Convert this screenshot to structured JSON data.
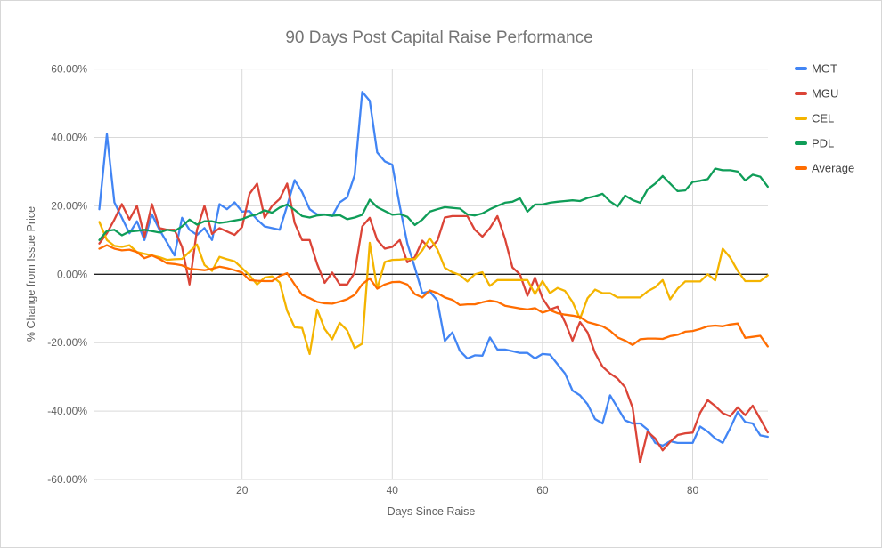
{
  "chart_data": {
    "type": "line",
    "title": "90 Days Post Capital Raise Performance",
    "xlabel": "Days Since Raise",
    "ylabel": "% Change from Issue Price",
    "xlim": [
      0,
      91
    ],
    "ylim": [
      -60,
      60
    ],
    "x_start_day": 1,
    "grid": true,
    "legend_position": "right",
    "x_ticks": [
      20,
      40,
      60,
      80
    ],
    "x_tick_labels": [
      "20",
      "40",
      "60",
      "80"
    ],
    "y_ticks": [
      60,
      40,
      20,
      0,
      -20,
      -40,
      -60
    ],
    "y_tick_labels": [
      "60.00%",
      "40.00%",
      "20.00%",
      "0.00%",
      "-20.00%",
      "-40.00%",
      "-60.00%"
    ],
    "colors": {
      "grid": "#d9d9d9",
      "zero_line": "#212121",
      "title_text": "#757575",
      "tick_text": "#616161",
      "legend_text": "#424242"
    },
    "series": [
      {
        "name": "MGT",
        "color": "#4285f4",
        "values": [
          19.0,
          41.0,
          21.0,
          16.5,
          12.0,
          15.5,
          10.0,
          17.5,
          13.0,
          9.3,
          5.5,
          16.5,
          13.0,
          11.5,
          13.5,
          10.0,
          20.5,
          19.0,
          21.0,
          18.3,
          18.5,
          16.0,
          14.0,
          13.5,
          13.0,
          20.0,
          27.5,
          24.0,
          19.0,
          17.5,
          17.5,
          17.0,
          21.0,
          22.5,
          29.0,
          53.3,
          50.7,
          35.6,
          33.0,
          32.0,
          20.0,
          9.0,
          2.0,
          -5.5,
          -5.0,
          -7.7,
          -19.5,
          -17.0,
          -22.4,
          -24.6,
          -23.7,
          -23.8,
          -18.5,
          -22.0,
          -22.0,
          -22.5,
          -23.0,
          -23.0,
          -24.6,
          -23.3,
          -23.5,
          -26.3,
          -29.0,
          -34.0,
          -35.4,
          -38.0,
          -42.3,
          -43.6,
          -35.4,
          -39.0,
          -42.7,
          -43.6,
          -43.6,
          -45.4,
          -49.3,
          -50.1,
          -48.8,
          -49.3,
          -49.3,
          -49.3,
          -44.5,
          -46.0,
          -48.0,
          -49.3,
          -45.0,
          -40.2,
          -43.2,
          -43.6,
          -47.1,
          -47.5
        ]
      },
      {
        "name": "MGU",
        "color": "#db4437",
        "values": [
          9.0,
          12.0,
          16.0,
          20.5,
          16.0,
          20.0,
          11.0,
          20.5,
          13.5,
          13.0,
          13.0,
          8.0,
          -3.0,
          13.0,
          20.0,
          11.8,
          13.5,
          12.5,
          11.5,
          13.8,
          23.5,
          26.5,
          16.5,
          20.0,
          22.0,
          26.5,
          15.0,
          10.0,
          10.0,
          3.0,
          -2.5,
          0.5,
          -3.0,
          -3.0,
          0.5,
          14.0,
          16.5,
          10.0,
          7.5,
          8.0,
          10.0,
          3.5,
          5.0,
          9.8,
          7.5,
          9.8,
          16.6,
          17.0,
          17.0,
          17.0,
          13.0,
          11.0,
          13.5,
          17.0,
          10.4,
          2.0,
          0.0,
          -6.3,
          -1.0,
          -7.0,
          -10.3,
          -9.5,
          -14.0,
          -19.4,
          -14.0,
          -17.0,
          -23.0,
          -27.0,
          -29.0,
          -30.5,
          -33.0,
          -39.0,
          -55.0,
          -46.0,
          -48.0,
          -51.5,
          -49.0,
          -47.0,
          -46.5,
          -46.3,
          -40.5,
          -36.8,
          -38.5,
          -40.6,
          -41.5,
          -38.9,
          -41.2,
          -38.4,
          -42.3,
          -46.2
        ]
      },
      {
        "name": "CEL",
        "color": "#f4b400",
        "values": [
          15.3,
          10.0,
          8.3,
          8.0,
          8.5,
          6.5,
          6.0,
          5.5,
          5.0,
          4.2,
          4.4,
          4.5,
          6.6,
          8.7,
          2.7,
          1.0,
          5.1,
          4.4,
          3.8,
          1.8,
          -0.3,
          -3.0,
          -1.0,
          -0.6,
          -2.4,
          -10.7,
          -15.5,
          -15.7,
          -23.3,
          -10.3,
          -16.0,
          -19.0,
          -14.2,
          -16.4,
          -21.6,
          -20.3,
          9.2,
          -4.2,
          3.6,
          4.2,
          4.3,
          4.5,
          4.4,
          7.0,
          10.5,
          7.3,
          1.9,
          0.6,
          -0.2,
          -2.1,
          0.0,
          0.6,
          -3.4,
          -1.7,
          -1.7,
          -1.7,
          -1.7,
          -1.7,
          -5.8,
          -2.0,
          -5.5,
          -4.0,
          -4.9,
          -8.1,
          -13.0,
          -7.0,
          -4.5,
          -5.5,
          -5.5,
          -6.8,
          -6.8,
          -6.8,
          -6.8,
          -5.0,
          -3.8,
          -1.7,
          -7.3,
          -4.2,
          -2.1,
          -2.1,
          -2.1,
          0.0,
          -1.8,
          7.5,
          4.9,
          1.0,
          -2.0,
          -2.0,
          -2.0,
          -0.3
        ]
      },
      {
        "name": "PDL",
        "color": "#0f9d58",
        "values": [
          10.0,
          12.7,
          13.0,
          11.4,
          12.5,
          12.7,
          13.0,
          12.6,
          12.2,
          13.0,
          12.6,
          14.0,
          16.0,
          14.5,
          15.5,
          15.5,
          15.0,
          15.3,
          15.7,
          16.1,
          17.0,
          17.5,
          18.7,
          18.0,
          19.5,
          20.4,
          18.8,
          17.0,
          16.6,
          17.2,
          17.4,
          17.1,
          17.3,
          16.1,
          16.6,
          17.4,
          21.8,
          19.6,
          18.5,
          17.4,
          17.6,
          16.8,
          14.4,
          16.0,
          18.3,
          19.0,
          19.6,
          19.4,
          19.2,
          17.5,
          17.2,
          17.8,
          19.0,
          20.0,
          20.9,
          21.2,
          22.2,
          18.3,
          20.4,
          20.4,
          20.9,
          21.2,
          21.4,
          21.6,
          21.4,
          22.3,
          22.8,
          23.5,
          21.3,
          19.8,
          23.0,
          21.7,
          20.9,
          24.8,
          26.5,
          28.7,
          26.5,
          24.3,
          24.5,
          27.0,
          27.3,
          27.8,
          30.9,
          30.4,
          30.4,
          30.0,
          27.4,
          29.1,
          28.5,
          25.6
        ]
      },
      {
        "name": "Average",
        "color": "#ff6d01",
        "values": [
          7.5,
          8.5,
          7.5,
          7.0,
          7.2,
          6.5,
          4.7,
          5.5,
          4.5,
          3.2,
          3.0,
          2.6,
          1.6,
          1.4,
          1.2,
          1.6,
          2.2,
          1.8,
          1.2,
          0.5,
          -1.7,
          -1.9,
          -2.0,
          -2.0,
          -0.5,
          0.3,
          -3.0,
          -6.0,
          -7.0,
          -8.1,
          -8.5,
          -8.6,
          -8.0,
          -7.3,
          -6.0,
          -2.9,
          -1.2,
          -4.2,
          -3.0,
          -2.3,
          -2.2,
          -3.0,
          -5.8,
          -6.8,
          -4.7,
          -5.5,
          -6.8,
          -7.5,
          -9.0,
          -8.8,
          -8.8,
          -8.2,
          -7.7,
          -8.1,
          -9.2,
          -9.6,
          -10.0,
          -10.3,
          -9.9,
          -11.2,
          -10.5,
          -11.4,
          -11.8,
          -12.1,
          -12.5,
          -14.0,
          -14.6,
          -15.2,
          -16.5,
          -18.5,
          -19.4,
          -20.7,
          -19.0,
          -18.8,
          -18.8,
          -18.9,
          -18.1,
          -17.7,
          -16.8,
          -16.6,
          -16.0,
          -15.2,
          -15.0,
          -15.2,
          -14.7,
          -14.4,
          -18.6,
          -18.3,
          -18.0,
          -21.1
        ]
      }
    ]
  }
}
